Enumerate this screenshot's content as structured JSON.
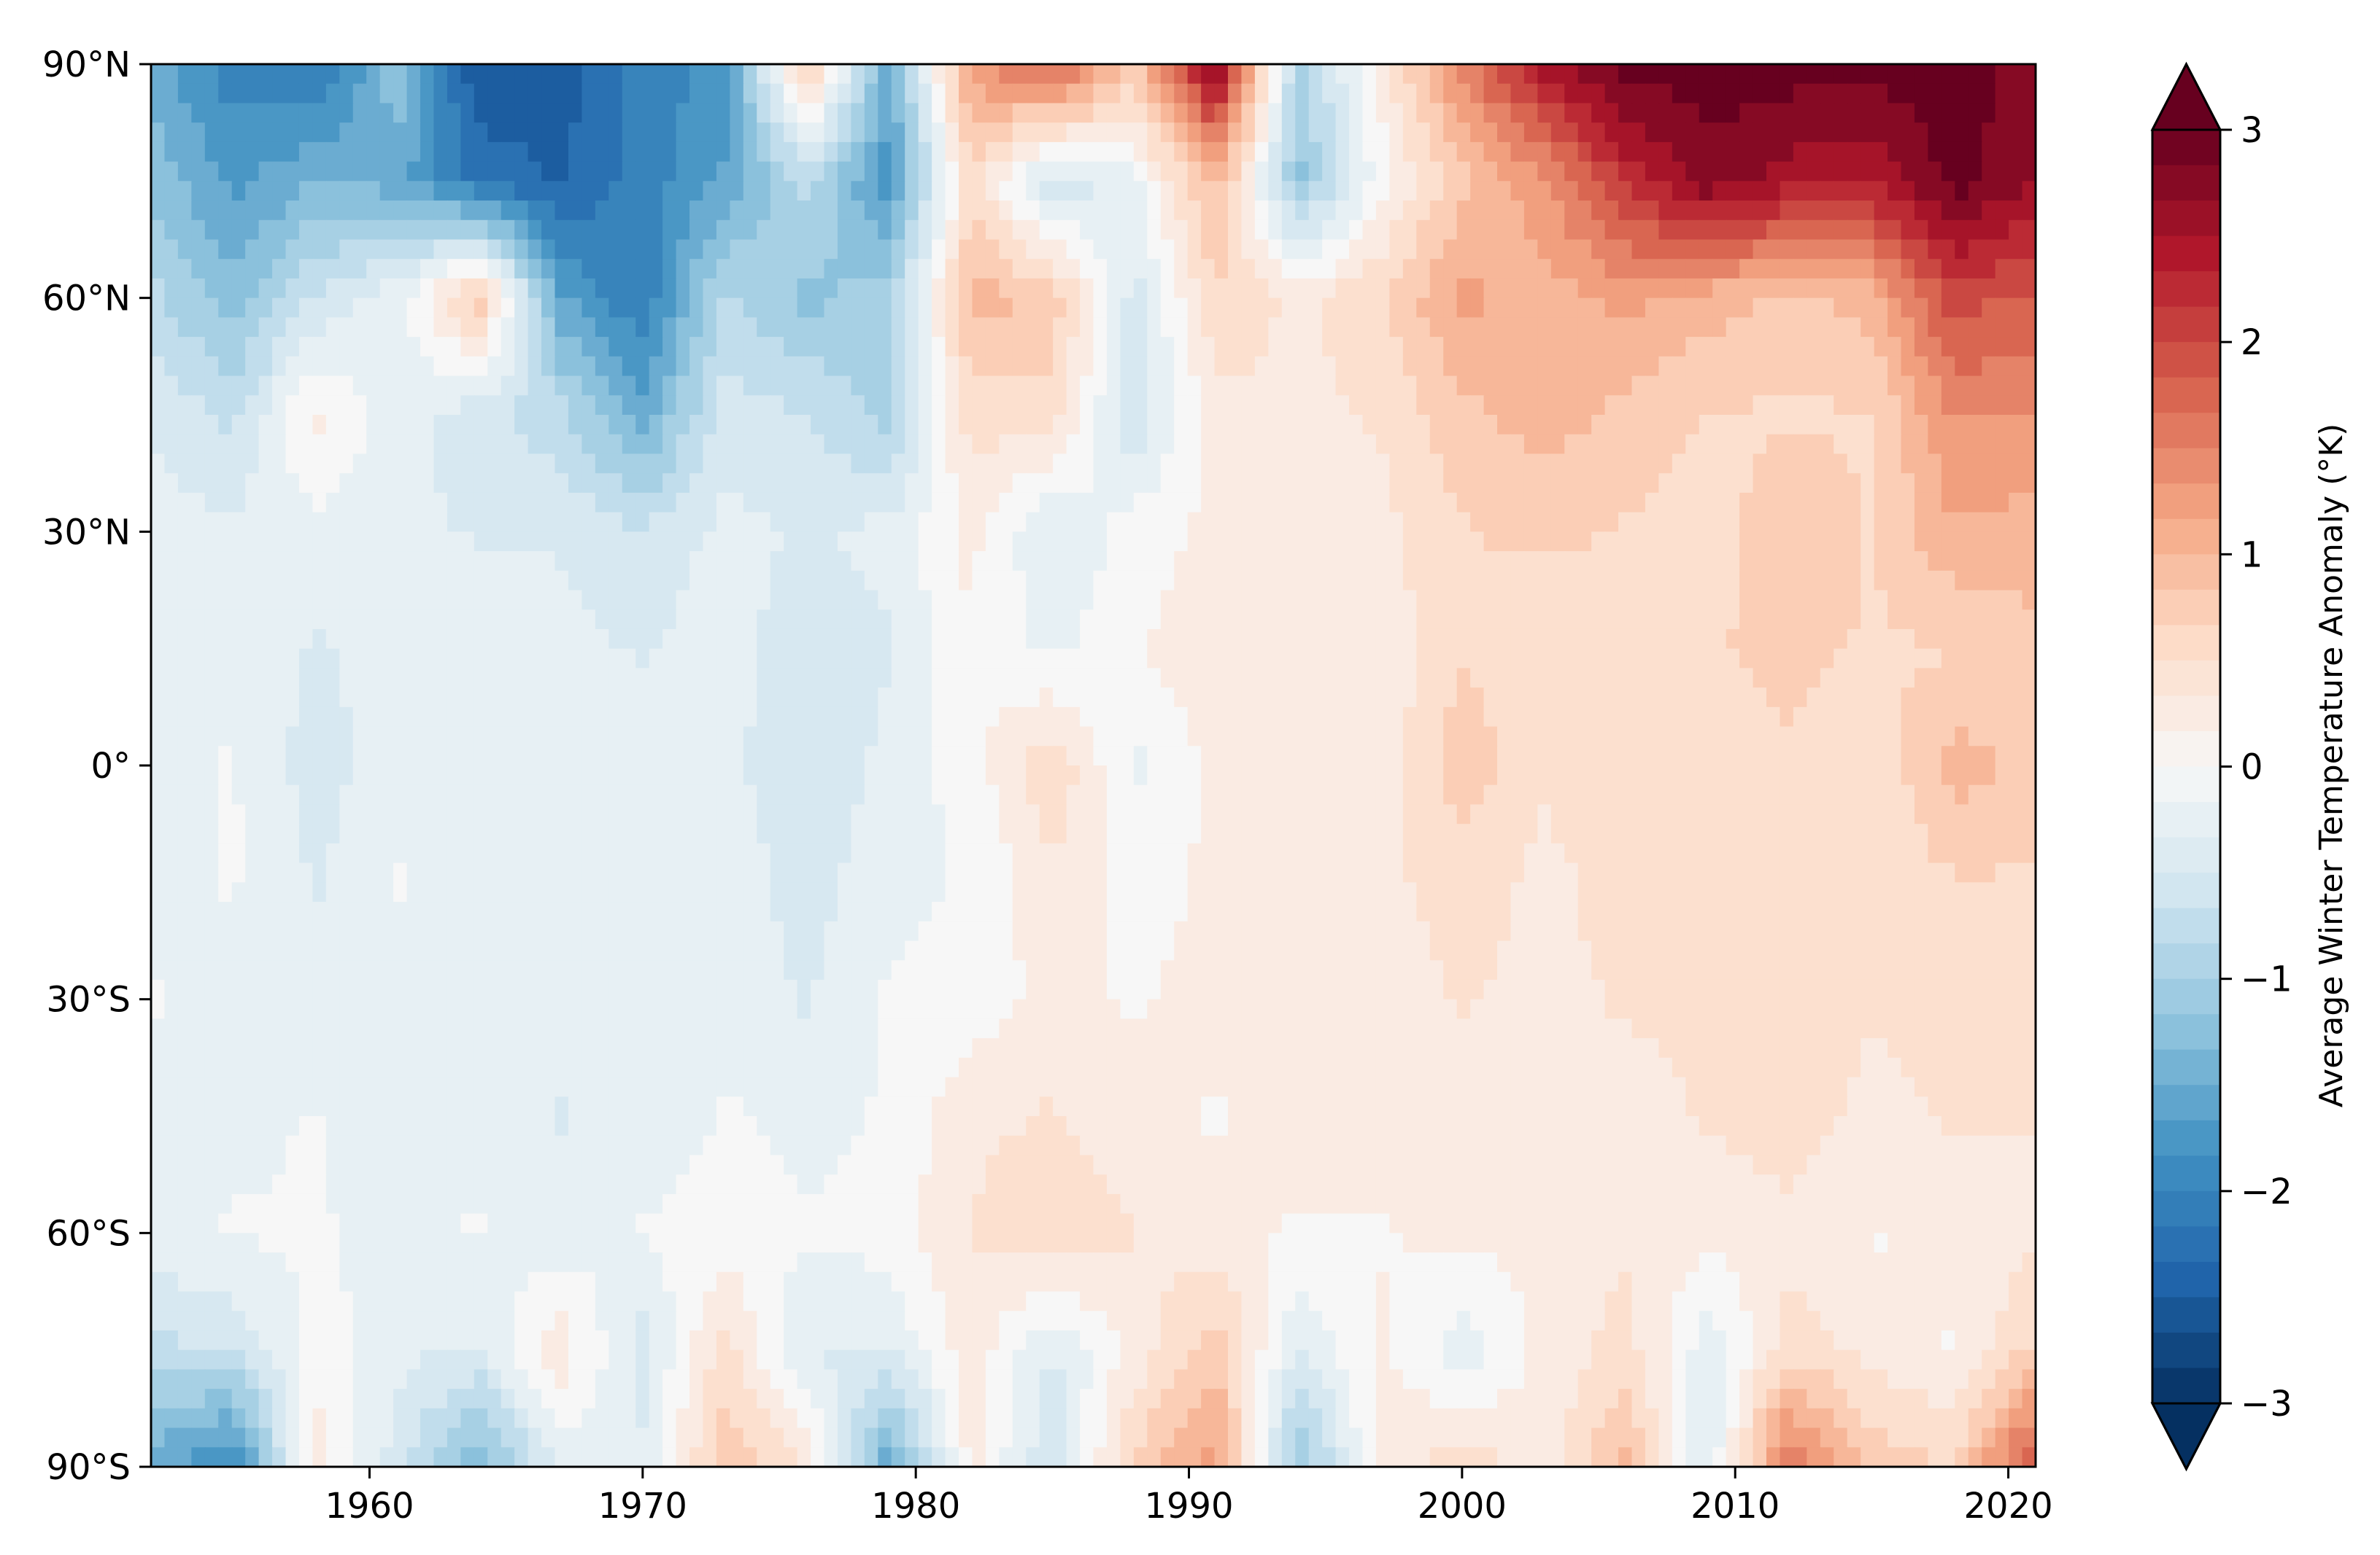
{
  "chart_data": {
    "type": "heatmap",
    "title": "",
    "xlabel": "",
    "ylabel": "",
    "xlim": [
      1952,
      2021
    ],
    "ylim": [
      -90,
      90
    ],
    "x_ticks": [
      {
        "value": 1960,
        "label": "1960"
      },
      {
        "value": 1970,
        "label": "1970"
      },
      {
        "value": 1980,
        "label": "1980"
      },
      {
        "value": 1990,
        "label": "1990"
      },
      {
        "value": 2000,
        "label": "2000"
      },
      {
        "value": 2010,
        "label": "2010"
      },
      {
        "value": 2020,
        "label": "2020"
      }
    ],
    "y_ticks": [
      {
        "value": 90,
        "label": "90°N"
      },
      {
        "value": 60,
        "label": "60°N"
      },
      {
        "value": 30,
        "label": "30°N"
      },
      {
        "value": 0,
        "label": "0°"
      },
      {
        "value": -30,
        "label": "30°S"
      },
      {
        "value": -60,
        "label": "60°S"
      },
      {
        "value": -90,
        "label": "90°S"
      }
    ],
    "colorbar": {
      "label": "Average Winter Temperature Anomaly (°K)",
      "range": [
        -3,
        3
      ],
      "extend": "both",
      "ticks": [
        {
          "value": 3,
          "label": "3"
        },
        {
          "value": 2,
          "label": "2"
        },
        {
          "value": 1,
          "label": "1"
        },
        {
          "value": 0,
          "label": "0"
        },
        {
          "value": -1,
          "label": "−1"
        },
        {
          "value": -2,
          "label": "−2"
        },
        {
          "value": -3,
          "label": "−3"
        }
      ],
      "colormap": "RdBu_r",
      "colors": [
        "#053061",
        "#2166ac",
        "#4393c3",
        "#92c5de",
        "#d1e5f0",
        "#f7f7f7",
        "#fddbc7",
        "#f4a582",
        "#d6604d",
        "#b2182b",
        "#67001f"
      ]
    },
    "latitudes": [
      90,
      75,
      60,
      45,
      30,
      15,
      0,
      -15,
      -30,
      -45,
      -60,
      -75,
      -90
    ],
    "x": [
      1952,
      1955,
      1958,
      1961,
      1964,
      1967,
      1970,
      1973,
      1976,
      1979,
      1982,
      1985,
      1988,
      1991,
      1994,
      1997,
      2000,
      2003,
      2006,
      2009,
      2012,
      2015,
      2018,
      2021
    ],
    "values": [
      [
        -1.5,
        -2.0,
        -2.2,
        -1.2,
        -2.6,
        -2.5,
        -2.0,
        -1.8,
        0.8,
        -1.5,
        1.3,
        1.8,
        0.8,
        2.8,
        -1.0,
        0.2,
        1.5,
        2.5,
        3.0,
        3.0,
        3.0,
        3.0,
        3.0,
        2.8
      ],
      [
        -1.2,
        -1.7,
        -1.4,
        -1.5,
        -2.2,
        -2.4,
        -2.0,
        -1.6,
        -0.8,
        -1.8,
        0.5,
        -0.6,
        -0.2,
        1.0,
        -1.2,
        0.0,
        0.8,
        1.3,
        2.2,
        2.8,
        2.5,
        2.4,
        3.0,
        2.6
      ],
      [
        -0.8,
        -1.3,
        -0.6,
        -0.2,
        0.8,
        -1.6,
        -2.1,
        -0.8,
        -1.2,
        -1.0,
        1.0,
        0.8,
        -0.5,
        0.6,
        0.3,
        0.6,
        1.2,
        1.0,
        1.2,
        1.0,
        0.8,
        1.0,
        2.0,
        1.8
      ],
      [
        -0.4,
        -0.7,
        0.2,
        -0.3,
        -0.5,
        -0.8,
        -1.5,
        -0.5,
        -0.6,
        -1.0,
        0.5,
        0.5,
        -0.6,
        0.3,
        0.3,
        0.4,
        0.8,
        1.0,
        0.8,
        0.6,
        0.6,
        0.6,
        1.4,
        1.4
      ],
      [
        -0.3,
        -0.3,
        -0.2,
        -0.3,
        -0.4,
        -0.4,
        -0.6,
        -0.3,
        -0.4,
        -0.3,
        0.2,
        -0.4,
        0.0,
        0.2,
        0.2,
        0.3,
        0.6,
        0.7,
        0.6,
        0.5,
        0.8,
        0.6,
        1.1,
        1.0
      ],
      [
        -0.2,
        -0.2,
        -0.4,
        -0.3,
        -0.2,
        -0.3,
        -0.4,
        -0.2,
        -0.6,
        -0.4,
        0.1,
        -0.2,
        0.1,
        0.3,
        0.2,
        0.2,
        0.6,
        0.4,
        0.5,
        0.6,
        0.7,
        0.6,
        0.6,
        0.8
      ],
      [
        -0.2,
        -0.1,
        -0.5,
        -0.2,
        -0.2,
        -0.2,
        -0.3,
        -0.3,
        -0.6,
        -0.3,
        0.0,
        0.6,
        -0.2,
        0.2,
        0.2,
        0.2,
        0.8,
        0.4,
        0.6,
        0.5,
        0.6,
        0.4,
        1.0,
        0.8
      ],
      [
        -0.2,
        -0.1,
        -0.4,
        -0.1,
        -0.3,
        -0.2,
        -0.3,
        -0.2,
        -0.5,
        -0.2,
        -0.1,
        0.3,
        0.0,
        0.2,
        0.2,
        0.3,
        0.5,
        0.3,
        0.5,
        0.4,
        0.4,
        0.4,
        0.6,
        0.6
      ],
      [
        -0.1,
        -0.2,
        -0.3,
        -0.2,
        -0.3,
        -0.2,
        -0.2,
        -0.2,
        -0.4,
        -0.1,
        0.0,
        0.2,
        0.1,
        0.2,
        0.3,
        0.2,
        0.4,
        0.3,
        0.4,
        0.4,
        0.5,
        0.4,
        0.5,
        0.5
      ],
      [
        -0.3,
        -0.2,
        -0.1,
        -0.3,
        -0.2,
        -0.4,
        -0.3,
        -0.1,
        -0.2,
        -0.1,
        0.3,
        0.4,
        0.2,
        0.1,
        0.2,
        0.2,
        0.2,
        0.3,
        0.3,
        0.4,
        0.5,
        0.3,
        0.4,
        0.4
      ],
      [
        -0.2,
        -0.1,
        -0.1,
        -0.2,
        -0.1,
        -0.3,
        -0.1,
        0.0,
        -0.1,
        0.0,
        0.4,
        0.6,
        0.4,
        0.2,
        0.1,
        0.1,
        0.2,
        0.2,
        0.3,
        0.2,
        0.3,
        0.1,
        0.2,
        0.3
      ],
      [
        -0.7,
        -0.6,
        0.0,
        -0.3,
        -0.4,
        0.3,
        -0.5,
        0.5,
        -0.4,
        -0.4,
        0.3,
        -0.4,
        0.2,
        0.8,
        -0.4,
        0.2,
        -0.3,
        0.2,
        0.5,
        -0.3,
        0.5,
        0.3,
        0.1,
        0.7
      ],
      [
        -1.5,
        -2.0,
        0.3,
        -0.5,
        -1.4,
        -0.3,
        -0.3,
        0.8,
        0.4,
        -1.6,
        0.2,
        -0.6,
        0.7,
        1.3,
        -1.2,
        0.2,
        0.6,
        0.2,
        1.0,
        -0.4,
        1.7,
        0.8,
        0.6,
        2.0
      ]
    ]
  }
}
